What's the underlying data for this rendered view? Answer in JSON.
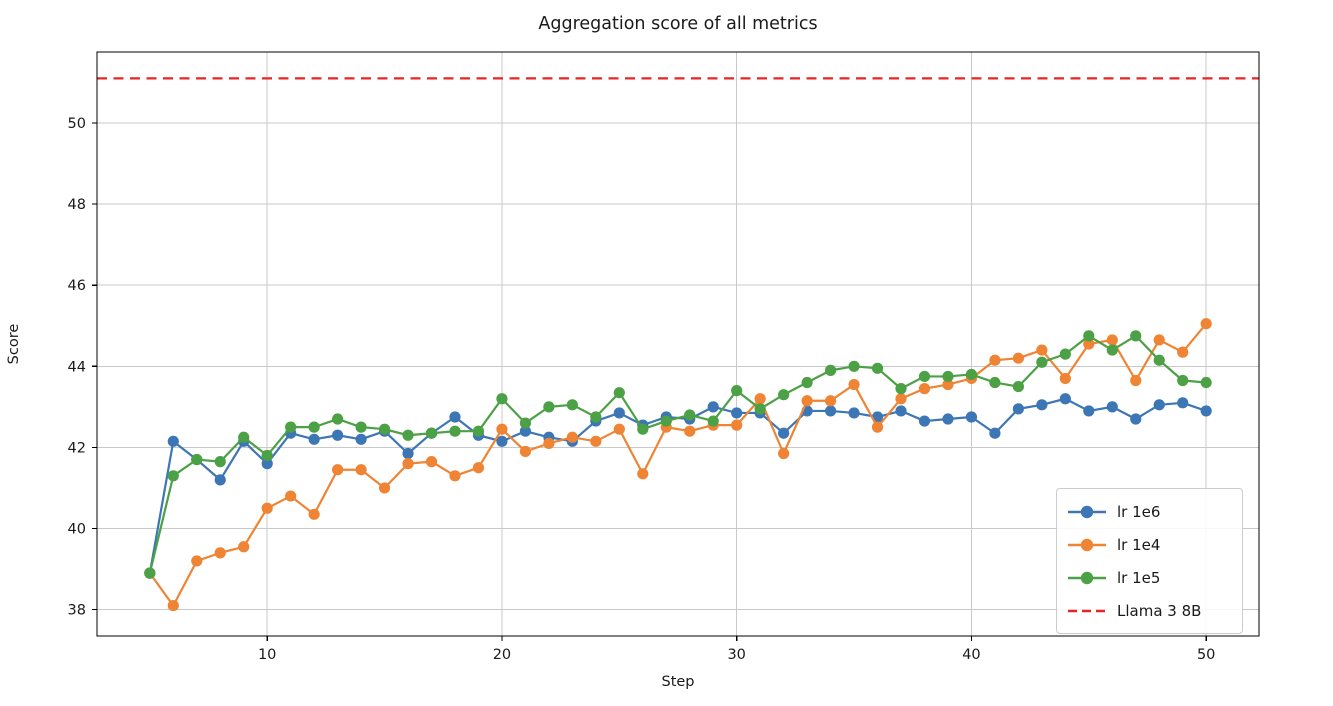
{
  "chart_data": {
    "type": "line",
    "title": "Aggregation score of all metrics",
    "xlabel": "Step",
    "ylabel": "Score",
    "xlim": [
      2.75,
      52.25
    ],
    "ylim": [
      37.35,
      51.75
    ],
    "x_ticks": [
      10,
      20,
      30,
      40,
      50
    ],
    "y_ticks": [
      38,
      40,
      42,
      44,
      46,
      48,
      50
    ],
    "grid": true,
    "grid_color": "#c9c9c9",
    "axis_color": "#000000",
    "legend_position": "lower right",
    "x": [
      5,
      6,
      7,
      8,
      9,
      10,
      11,
      12,
      13,
      14,
      15,
      16,
      17,
      18,
      19,
      20,
      21,
      22,
      23,
      24,
      25,
      26,
      27,
      28,
      29,
      30,
      31,
      32,
      33,
      34,
      35,
      36,
      37,
      38,
      39,
      40,
      41,
      42,
      43,
      44,
      45,
      46,
      47,
      48,
      49,
      50
    ],
    "series": [
      {
        "name": "lr 1e6",
        "color": "#3d76b4",
        "marker": "circle",
        "values": [
          38.9,
          42.15,
          41.7,
          41.2,
          42.15,
          41.6,
          42.35,
          42.2,
          42.3,
          42.2,
          42.4,
          41.85,
          42.35,
          42.75,
          42.3,
          42.15,
          42.4,
          42.25,
          42.15,
          42.65,
          42.85,
          42.55,
          42.75,
          42.7,
          43.0,
          42.85,
          42.85,
          42.35,
          42.9,
          42.9,
          42.85,
          42.75,
          42.9,
          42.65,
          42.7,
          42.75,
          42.35,
          42.95,
          43.05,
          43.2,
          42.9,
          43.0,
          42.7,
          43.05,
          43.1,
          42.9
        ]
      },
      {
        "name": "lr 1e4",
        "color": "#ee8434",
        "marker": "circle",
        "values": [
          38.9,
          38.1,
          39.2,
          39.4,
          39.55,
          40.5,
          40.8,
          40.35,
          41.45,
          41.45,
          41.0,
          41.6,
          41.65,
          41.3,
          41.5,
          42.45,
          41.9,
          42.1,
          42.25,
          42.15,
          42.45,
          41.35,
          42.5,
          42.4,
          42.55,
          42.55,
          43.2,
          41.85,
          43.15,
          43.15,
          43.55,
          42.5,
          43.2,
          43.45,
          43.55,
          43.7,
          44.15,
          44.2,
          44.4,
          43.7,
          44.55,
          44.65,
          43.65,
          44.65,
          44.35,
          45.05
        ]
      },
      {
        "name": "lr 1e5",
        "color": "#4ca045",
        "marker": "circle",
        "values": [
          38.9,
          41.3,
          41.7,
          41.65,
          42.25,
          41.8,
          42.5,
          42.5,
          42.7,
          42.5,
          42.45,
          42.3,
          42.35,
          42.4,
          42.4,
          43.2,
          42.6,
          43.0,
          43.05,
          42.75,
          43.35,
          42.45,
          42.65,
          42.8,
          42.65,
          43.4,
          42.95,
          43.3,
          43.6,
          43.9,
          44.0,
          43.95,
          43.45,
          43.75,
          43.75,
          43.8,
          43.6,
          43.5,
          44.1,
          44.3,
          44.75,
          44.4,
          44.75,
          44.15,
          43.65,
          43.6
        ]
      }
    ],
    "reference_line": {
      "name": "Llama 3 8B",
      "value": 51.1,
      "color": "#e62525",
      "style": "dashed"
    }
  }
}
